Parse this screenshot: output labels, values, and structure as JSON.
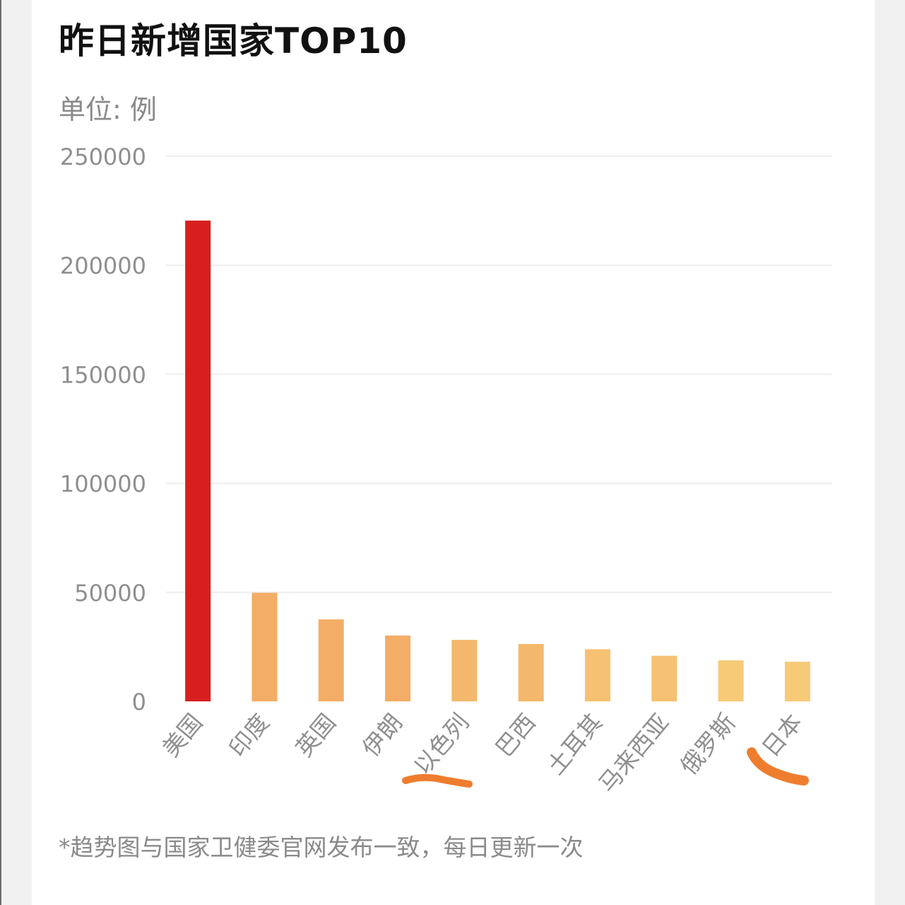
{
  "header": {
    "title": "昨日新增国家TOP10",
    "unit": "单位: 例"
  },
  "footer": {
    "note": "*趋势图与国家卫健委官网发布一致，每日更新一次"
  },
  "colors": {
    "highlight_bar": "#d71f1f",
    "bar_gradient": [
      "#f3ad66",
      "#f4b86d",
      "#f6c172",
      "#f7ca78"
    ],
    "grid": "#eeeeee",
    "marker": "#ef7d2e"
  },
  "chart_data": {
    "type": "bar",
    "title": "昨日新增国家TOP10",
    "ylabel": "单位: 例",
    "xlabel": "",
    "categories": [
      "美国",
      "印度",
      "英国",
      "伊朗",
      "以色列",
      "巴西",
      "土耳其",
      "马来西亚",
      "俄罗斯",
      "日本"
    ],
    "values": [
      220500,
      49800,
      37600,
      30200,
      28200,
      26300,
      23900,
      20900,
      18800,
      18200
    ],
    "ylim": [
      0,
      250000
    ],
    "yticks": [
      0,
      50000,
      100000,
      150000,
      200000,
      250000
    ],
    "grid": true,
    "legend": "none"
  }
}
